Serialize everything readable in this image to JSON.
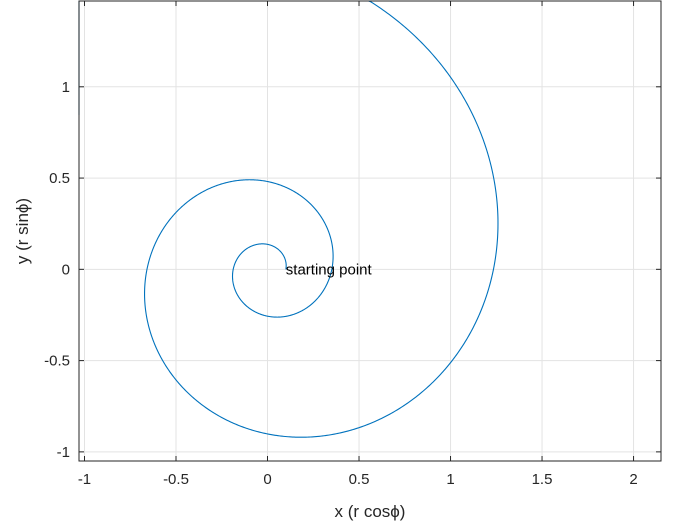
{
  "chart_data": {
    "type": "line",
    "title": "",
    "xlabel": "x (r cosϕ)",
    "ylabel": "y (r sinϕ)",
    "xlim": [
      -1.03,
      2.15
    ],
    "ylim": [
      -1.05,
      1.47
    ],
    "xticks": [
      -1,
      -0.5,
      0,
      0.5,
      1,
      1.5,
      2
    ],
    "xtick_labels": [
      "-1",
      "-0.5",
      "0",
      "0.5",
      "1",
      "1.5",
      "2"
    ],
    "yticks": [
      -1,
      -0.5,
      0,
      0.5,
      1
    ],
    "ytick_labels": [
      "-1",
      "-0.5",
      "0",
      "0.5",
      "1"
    ],
    "grid": true,
    "box": true,
    "series": [
      {
        "curve": "logarithmic spiral",
        "equation": "r = 0.1 * exp(0.2 * phi)",
        "r0": 0.1,
        "growth": 0.2,
        "phi_range": [
          0,
          15.3
        ],
        "color": "#0072BD"
      }
    ],
    "annotations": [
      {
        "text": "starting point",
        "x": 0.1,
        "y": 0
      }
    ]
  },
  "colors": {
    "line": "#0072BD",
    "grid": "#e3e3e3",
    "axes": "#262626",
    "background": "#ffffff"
  }
}
